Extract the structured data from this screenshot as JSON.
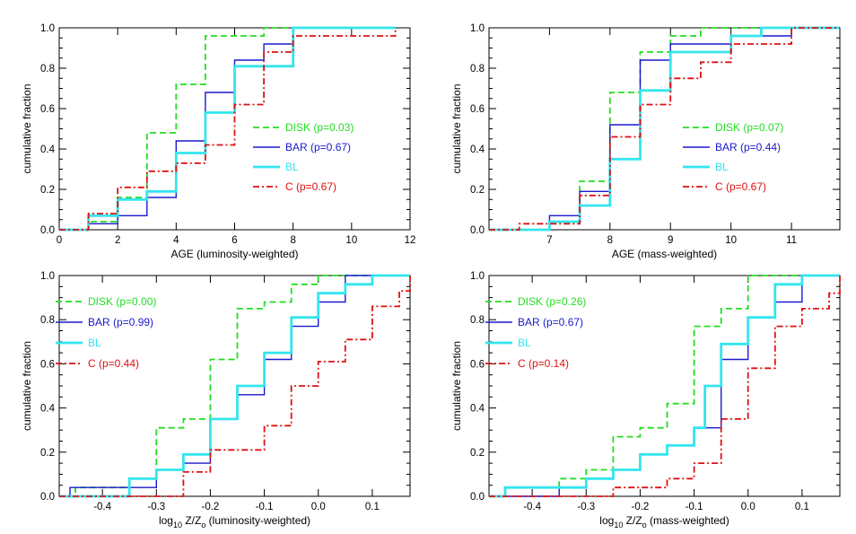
{
  "chart_data": [
    {
      "type": "line",
      "step": true,
      "xlabel": "AGE (luminosity-weighted)",
      "ylabel": "cumulative fraction",
      "xlim": [
        0,
        12
      ],
      "ylim": [
        0,
        1
      ],
      "xticks": [
        0,
        2,
        4,
        6,
        8,
        10,
        12
      ],
      "xtick_labels": [
        "0",
        "2",
        "4",
        "6",
        "8",
        "10",
        "12"
      ],
      "yticks": [
        0,
        0.2,
        0.4,
        0.6,
        0.8,
        1.0
      ],
      "ytick_labels": [
        "0.0",
        "0.2",
        "0.4",
        "0.6",
        "0.8",
        "1.0"
      ],
      "legend_position": "right",
      "series": [
        {
          "name": "DISK",
          "legend": "DISK (p=0.03)",
          "color": "#22dd22",
          "style": "dashed",
          "x": [
            0,
            1,
            2,
            3,
            4,
            5,
            6,
            7,
            8,
            11.5
          ],
          "y": [
            0,
            0.04,
            0.16,
            0.48,
            0.72,
            0.96,
            0.96,
            1.0,
            1.0,
            1.0
          ]
        },
        {
          "name": "BAR",
          "legend": "BAR (p=0.67)",
          "color": "#1a1acc",
          "style": "solid",
          "x": [
            0,
            1,
            2,
            3,
            4,
            5,
            6,
            7,
            8,
            11.5
          ],
          "y": [
            0,
            0.03,
            0.07,
            0.16,
            0.44,
            0.68,
            0.84,
            0.92,
            1.0,
            1.0
          ]
        },
        {
          "name": "BL",
          "legend": "BL",
          "color": "#33e5ee",
          "style": "thick",
          "x": [
            0,
            1,
            2,
            3,
            4,
            5,
            6,
            7,
            8,
            11.5
          ],
          "y": [
            0,
            0.07,
            0.15,
            0.19,
            0.38,
            0.58,
            0.81,
            0.81,
            1.0,
            1.0
          ]
        },
        {
          "name": "C",
          "legend": "C (p=0.67)",
          "color": "#dd1111",
          "style": "dashdot",
          "x": [
            0,
            1,
            2,
            3,
            4,
            5,
            6,
            7,
            8,
            11.5
          ],
          "y": [
            0,
            0.08,
            0.21,
            0.29,
            0.33,
            0.42,
            0.62,
            0.88,
            0.96,
            1.0
          ]
        }
      ]
    },
    {
      "type": "line",
      "step": true,
      "xlabel": "AGE (mass-weighted)",
      "ylabel": "cumulative fraction",
      "xlim": [
        6,
        11.8
      ],
      "ylim": [
        0,
        1
      ],
      "xticks": [
        7,
        8,
        9,
        10,
        11
      ],
      "xtick_labels": [
        "7",
        "8",
        "9",
        "10",
        "11"
      ],
      "yticks": [
        0,
        0.2,
        0.4,
        0.6,
        0.8,
        1.0
      ],
      "ytick_labels": [
        "0.0",
        "0.2",
        "0.4",
        "0.6",
        "0.8",
        "1.0"
      ],
      "legend_position": "right",
      "series": [
        {
          "name": "DISK",
          "legend": "DISK (p=0.07)",
          "color": "#22dd22",
          "style": "dashed",
          "x": [
            6.0,
            7.0,
            7.5,
            8.0,
            8.5,
            9.0,
            9.5,
            11.8
          ],
          "y": [
            0,
            0.04,
            0.24,
            0.68,
            0.88,
            0.96,
            1.0,
            1.0
          ]
        },
        {
          "name": "BAR",
          "legend": "BAR (p=0.44)",
          "color": "#1a1acc",
          "style": "solid",
          "x": [
            6.0,
            7.0,
            7.5,
            8.0,
            8.5,
            9.0,
            10.0,
            11.0,
            11.8
          ],
          "y": [
            0,
            0.07,
            0.19,
            0.52,
            0.84,
            0.92,
            0.96,
            1.0,
            1.0
          ]
        },
        {
          "name": "BL",
          "legend": "BL",
          "color": "#33e5ee",
          "style": "thick",
          "x": [
            6.0,
            7.0,
            7.5,
            8.0,
            8.5,
            9.0,
            10.0,
            10.5,
            11.8
          ],
          "y": [
            0,
            0.04,
            0.12,
            0.35,
            0.69,
            0.88,
            0.96,
            1.0,
            1.0
          ]
        },
        {
          "name": "C",
          "legend": "C (p=0.67)",
          "color": "#dd1111",
          "style": "dashdot",
          "x": [
            6.0,
            6.5,
            7.5,
            8.0,
            8.5,
            9.0,
            9.5,
            10.0,
            11.0,
            11.8
          ],
          "y": [
            0,
            0.03,
            0.17,
            0.46,
            0.62,
            0.75,
            0.83,
            0.92,
            1.0,
            1.0
          ]
        }
      ]
    },
    {
      "type": "line",
      "step": true,
      "xlabel_main": "log",
      "xlabel_sub": "10",
      "xlabel_mid": " Z/Z",
      "xlabel_sub2": "o",
      "xlabel_tail": " (luminosity-weighted)",
      "ylabel": "cumulative fraction",
      "xlim": [
        -0.48,
        0.17
      ],
      "ylim": [
        0,
        1
      ],
      "xticks": [
        -0.4,
        -0.3,
        -0.2,
        -0.1,
        0.0,
        0.1
      ],
      "xtick_labels": [
        "-0.4",
        "-0.3",
        "-0.2",
        "-0.1",
        "0.0",
        "0.1"
      ],
      "yticks": [
        0,
        0.2,
        0.4,
        0.6,
        0.8,
        1.0
      ],
      "ytick_labels": [
        "0.0",
        "0.2",
        "0.4",
        "0.6",
        "0.8",
        "1.0"
      ],
      "legend_position": "top-left",
      "series": [
        {
          "name": "DISK",
          "legend": "DISK (p=0.00)",
          "color": "#22dd22",
          "style": "dashed",
          "x": [
            -0.48,
            -0.45,
            -0.35,
            -0.3,
            -0.25,
            -0.2,
            -0.15,
            -0.1,
            -0.05,
            0.0,
            0.17
          ],
          "y": [
            0,
            0.04,
            0.08,
            0.31,
            0.35,
            0.62,
            0.85,
            0.88,
            0.96,
            1.0,
            1.0
          ]
        },
        {
          "name": "BAR",
          "legend": "BAR (p=0.99)",
          "color": "#1a1acc",
          "style": "solid",
          "x": [
            -0.48,
            -0.46,
            -0.3,
            -0.25,
            -0.2,
            -0.15,
            -0.1,
            -0.05,
            0.0,
            0.05,
            0.17
          ],
          "y": [
            0,
            0.04,
            0.12,
            0.15,
            0.35,
            0.46,
            0.62,
            0.77,
            0.88,
            1.0,
            1.0
          ]
        },
        {
          "name": "BL",
          "legend": "BL",
          "color": "#33e5ee",
          "style": "thick",
          "x": [
            -0.48,
            -0.35,
            -0.3,
            -0.25,
            -0.2,
            -0.15,
            -0.1,
            -0.05,
            0.0,
            0.05,
            0.1,
            0.17
          ],
          "y": [
            0,
            0.08,
            0.12,
            0.19,
            0.35,
            0.5,
            0.65,
            0.81,
            0.92,
            0.96,
            1.0,
            1.0
          ]
        },
        {
          "name": "C",
          "legend": "C (p=0.44)",
          "color": "#dd1111",
          "style": "dashdot",
          "x": [
            -0.48,
            -0.25,
            -0.2,
            -0.1,
            -0.05,
            0.0,
            0.05,
            0.1,
            0.15,
            0.17
          ],
          "y": [
            0,
            0.11,
            0.21,
            0.32,
            0.5,
            0.61,
            0.71,
            0.86,
            0.93,
            1.0
          ]
        }
      ]
    },
    {
      "type": "line",
      "step": true,
      "xlabel_main": "log",
      "xlabel_sub": "10",
      "xlabel_mid": " Z/Z",
      "xlabel_sub2": "o",
      "xlabel_tail": " (mass-weighted)",
      "ylabel": "cumulative fraction",
      "xlim": [
        -0.48,
        0.17
      ],
      "ylim": [
        0,
        1
      ],
      "xticks": [
        -0.4,
        -0.3,
        -0.2,
        -0.1,
        0.0,
        0.1
      ],
      "xtick_labels": [
        "-0.4",
        "-0.3",
        "-0.2",
        "-0.1",
        "0.0",
        "0.1"
      ],
      "yticks": [
        0,
        0.2,
        0.4,
        0.6,
        0.8,
        1.0
      ],
      "ytick_labels": [
        "0.0",
        "0.2",
        "0.4",
        "0.6",
        "0.8",
        "1.0"
      ],
      "legend_position": "top-left",
      "series": [
        {
          "name": "DISK",
          "legend": "DISK (p=0.26)",
          "color": "#22dd22",
          "style": "dashed",
          "x": [
            -0.48,
            -0.45,
            -0.35,
            -0.3,
            -0.25,
            -0.2,
            -0.15,
            -0.1,
            -0.05,
            0.0,
            0.17
          ],
          "y": [
            0,
            0.04,
            0.08,
            0.12,
            0.27,
            0.31,
            0.42,
            0.77,
            0.85,
            1.0,
            1.0
          ]
        },
        {
          "name": "BAR",
          "legend": "BAR (p=0.67)",
          "color": "#1a1acc",
          "style": "solid",
          "x": [
            -0.48,
            -0.35,
            -0.3,
            -0.25,
            -0.2,
            -0.15,
            -0.1,
            -0.05,
            0.0,
            0.05,
            0.1,
            0.17
          ],
          "y": [
            0,
            0.04,
            0.08,
            0.12,
            0.19,
            0.23,
            0.31,
            0.62,
            0.81,
            0.88,
            1.0,
            1.0
          ]
        },
        {
          "name": "BL",
          "legend": "BL",
          "color": "#33e5ee",
          "style": "thick",
          "x": [
            -0.48,
            -0.45,
            -0.3,
            -0.25,
            -0.2,
            -0.15,
            -0.1,
            -0.08,
            -0.05,
            0.0,
            0.05,
            0.1,
            0.17
          ],
          "y": [
            0,
            0.04,
            0.08,
            0.12,
            0.19,
            0.23,
            0.31,
            0.5,
            0.69,
            0.81,
            0.96,
            1.0,
            1.0
          ]
        },
        {
          "name": "C",
          "legend": "C (p=0.14)",
          "color": "#dd1111",
          "style": "dashdot",
          "x": [
            -0.48,
            -0.25,
            -0.15,
            -0.1,
            -0.05,
            0.0,
            0.05,
            0.1,
            0.15,
            0.17
          ],
          "y": [
            0,
            0.04,
            0.08,
            0.15,
            0.35,
            0.58,
            0.77,
            0.85,
            0.92,
            1.0
          ]
        }
      ]
    }
  ]
}
